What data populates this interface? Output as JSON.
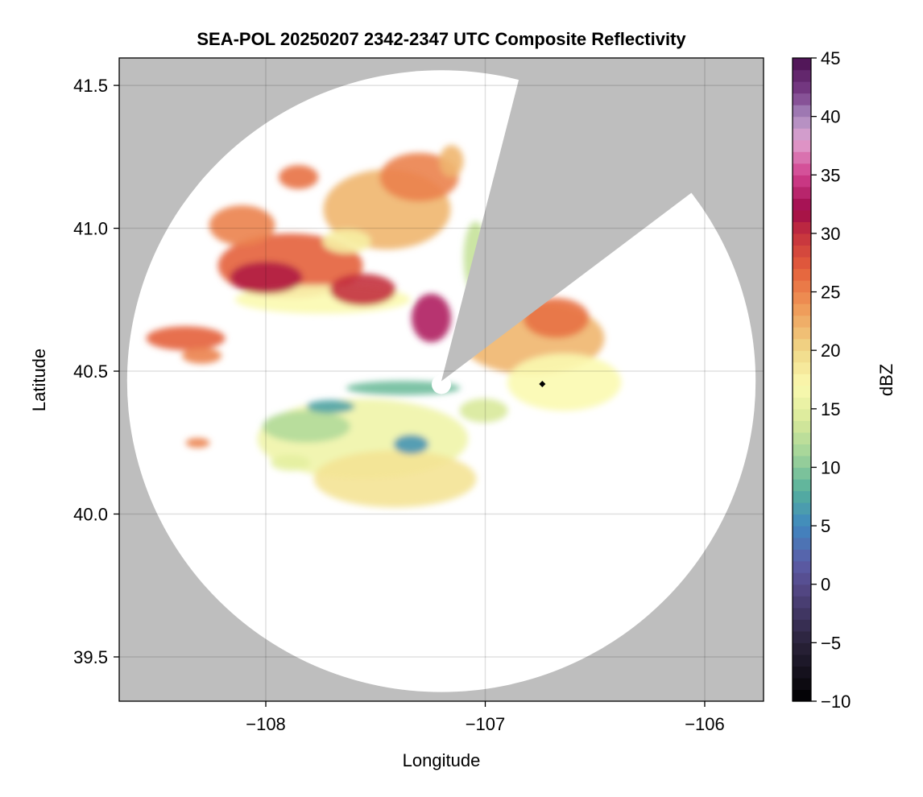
{
  "chart_data": {
    "type": "heatmap",
    "title": "SEA-POL 20250207 2342-2347 UTC Composite Reflectivity",
    "xlabel": "Longitude",
    "ylabel": "Latitude",
    "xlim": [
      -108.668,
      -105.732
    ],
    "ylim": [
      39.345,
      41.596
    ],
    "xticks": [
      -108,
      -107,
      -106
    ],
    "xtick_labels": [
      "−108",
      "−107",
      "−106"
    ],
    "yticks": [
      39.5,
      40.0,
      40.5,
      41.0,
      41.5
    ],
    "ytick_labels": [
      "39.5",
      "40.0",
      "40.5",
      "41.0",
      "41.5"
    ],
    "grid": true,
    "background_color": "#bebebe",
    "radar": {
      "center_lon": -107.2,
      "center_lat": 40.465,
      "range_lon": 1.432,
      "range_lat": 1.088,
      "blocked_sector_azimuth_deg": [
        14.4,
        53.0
      ]
    },
    "marker": {
      "lon": -106.74,
      "lat": 40.455,
      "shape": "diamond",
      "color": "#000000"
    },
    "echo_cells": [
      {
        "lon": -107.888,
        "lat": 40.869,
        "rlon": 0.33,
        "rlat": 0.113,
        "dbz": 27
      },
      {
        "lon": -108.108,
        "lat": 41.01,
        "rlon": 0.15,
        "rlat": 0.07,
        "dbz": 25
      },
      {
        "lon": -107.851,
        "lat": 41.179,
        "rlon": 0.09,
        "rlat": 0.042,
        "dbz": 26
      },
      {
        "lon": -107.448,
        "lat": 41.066,
        "rlon": 0.29,
        "rlat": 0.14,
        "dbz": 22
      },
      {
        "lon": -107.301,
        "lat": 41.179,
        "rlon": 0.18,
        "rlat": 0.085,
        "dbz": 25
      },
      {
        "lon": -107.154,
        "lat": 41.235,
        "rlon": 0.055,
        "rlat": 0.056,
        "dbz": 22
      },
      {
        "lon": -107.631,
        "lat": 40.954,
        "rlon": 0.11,
        "rlat": 0.042,
        "dbz": 18
      },
      {
        "lon": -107.741,
        "lat": 40.751,
        "rlon": 0.4,
        "rlat": 0.05,
        "dbz": 17
      },
      {
        "lon": -107.998,
        "lat": 40.827,
        "rlon": 0.165,
        "rlat": 0.056,
        "dbz": 31
      },
      {
        "lon": -107.558,
        "lat": 40.785,
        "rlon": 0.15,
        "rlat": 0.056,
        "dbz": 30
      },
      {
        "lon": -107.246,
        "lat": 40.686,
        "rlon": 0.09,
        "rlat": 0.085,
        "dbz": 33
      },
      {
        "lon": -107.044,
        "lat": 40.897,
        "rlon": 0.055,
        "rlat": 0.127,
        "dbz": 13
      },
      {
        "lon": -108.365,
        "lat": 40.615,
        "rlon": 0.18,
        "rlat": 0.042,
        "dbz": 27
      },
      {
        "lon": -108.292,
        "lat": 40.554,
        "rlon": 0.09,
        "rlat": 0.028,
        "dbz": 25
      },
      {
        "lon": -106.787,
        "lat": 40.615,
        "rlon": 0.33,
        "rlat": 0.127,
        "dbz": 22
      },
      {
        "lon": -106.677,
        "lat": 40.686,
        "rlon": 0.15,
        "rlat": 0.07,
        "dbz": 26
      },
      {
        "lon": -106.64,
        "lat": 40.461,
        "rlon": 0.26,
        "rlat": 0.1,
        "dbz": 17
      },
      {
        "lon": -107.558,
        "lat": 40.263,
        "rlon": 0.48,
        "rlat": 0.14,
        "dbz": 16
      },
      {
        "lon": -107.411,
        "lat": 40.123,
        "rlon": 0.37,
        "rlat": 0.1,
        "dbz": 19
      },
      {
        "lon": -107.815,
        "lat": 40.306,
        "rlon": 0.2,
        "rlat": 0.056,
        "dbz": 12
      },
      {
        "lon": -107.374,
        "lat": 40.441,
        "rlon": 0.26,
        "rlat": 0.025,
        "dbz": 9
      },
      {
        "lon": -107.705,
        "lat": 40.376,
        "rlon": 0.11,
        "rlat": 0.023,
        "dbz": 7
      },
      {
        "lon": -107.338,
        "lat": 40.244,
        "rlon": 0.08,
        "rlat": 0.034,
        "dbz": 6
      },
      {
        "lon": -107.888,
        "lat": 40.179,
        "rlon": 0.09,
        "rlat": 0.028,
        "dbz": 15
      },
      {
        "lon": -108.31,
        "lat": 40.249,
        "rlon": 0.055,
        "rlat": 0.017,
        "dbz": 25
      },
      {
        "lon": -107.007,
        "lat": 40.362,
        "rlon": 0.11,
        "rlat": 0.042,
        "dbz": 14
      }
    ],
    "colorbar": {
      "label": "dBZ",
      "range": [
        -10,
        45
      ],
      "bins": 55,
      "ticks": [
        -10,
        -5,
        0,
        5,
        10,
        15,
        20,
        25,
        30,
        35,
        40,
        45
      ],
      "tick_labels": [
        "−10",
        "−5",
        "0",
        "5",
        "10",
        "15",
        "20",
        "25",
        "30",
        "35",
        "40",
        "45"
      ],
      "stops": [
        {
          "v": -10,
          "c": "#000000"
        },
        {
          "v": -5,
          "c": "#2a223a"
        },
        {
          "v": 0,
          "c": "#564a8a"
        },
        {
          "v": 2,
          "c": "#5b5ea8"
        },
        {
          "v": 5,
          "c": "#3f87c0"
        },
        {
          "v": 8,
          "c": "#56b09c"
        },
        {
          "v": 11,
          "c": "#a0d39a"
        },
        {
          "v": 14,
          "c": "#d8e99a"
        },
        {
          "v": 17,
          "c": "#fbfab0"
        },
        {
          "v": 20,
          "c": "#f0d888"
        },
        {
          "v": 24,
          "c": "#ef9455"
        },
        {
          "v": 27,
          "c": "#e45f3b"
        },
        {
          "v": 30,
          "c": "#c4303e"
        },
        {
          "v": 32,
          "c": "#9e0a4a"
        },
        {
          "v": 35,
          "c": "#d1408e"
        },
        {
          "v": 38,
          "c": "#e0a3d0"
        },
        {
          "v": 40,
          "c": "#a98bbf"
        },
        {
          "v": 42,
          "c": "#7b3f8a"
        },
        {
          "v": 45,
          "c": "#4a0f4f"
        }
      ]
    }
  }
}
